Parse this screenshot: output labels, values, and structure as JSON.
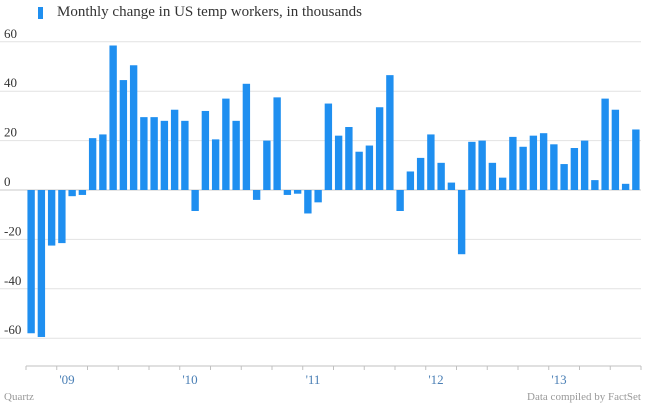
{
  "chart_data": {
    "type": "bar",
    "legend": "Monthly change in US temp workers, in thousands",
    "y_ticks": [
      "60",
      "40",
      "20",
      "0",
      "-20",
      "-40",
      "-60"
    ],
    "y_tick_values": [
      60,
      40,
      20,
      0,
      -20,
      -40,
      -60
    ],
    "ylim": [
      -64,
      64
    ],
    "x_tick_labels": [
      "'09",
      "'10",
      "'11",
      "'12",
      "'13"
    ],
    "x_tick_bar_index": [
      3.5,
      15.5,
      27.5,
      39.5,
      51.5
    ],
    "grid": true,
    "legend_position": "top-left",
    "bar_color": "#1f8ff0",
    "values": [
      -58,
      -59.5,
      -22.5,
      -21.5,
      -2.5,
      -2,
      21,
      22.5,
      58.5,
      44.5,
      50.5,
      29.5,
      29.5,
      28,
      32.5,
      28,
      -8.5,
      32,
      20.5,
      37,
      28,
      43,
      -4,
      20,
      37.5,
      -2,
      -1.5,
      -9.5,
      -5,
      35,
      22,
      25.5,
      15.5,
      18,
      33.5,
      46.5,
      -8.5,
      7.5,
      13,
      22.5,
      11,
      3,
      -26,
      19.5,
      20,
      11,
      5,
      21.5,
      17.5,
      22,
      23,
      18.5,
      10.5,
      17,
      20,
      4,
      37,
      32.5,
      2.5,
      24.5
    ]
  },
  "footer": {
    "source_left": "Quartz",
    "source_right": "Data compiled by FactSet"
  }
}
